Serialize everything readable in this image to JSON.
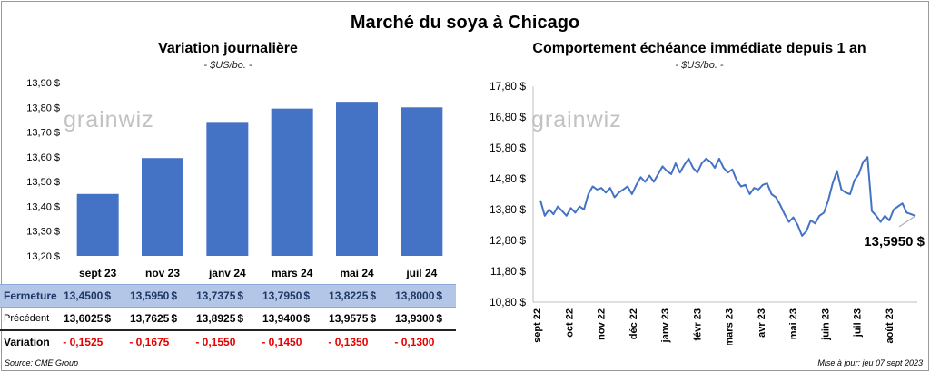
{
  "title": "Marché du soya à Chicago",
  "left_chart": {
    "title": "Variation journalière",
    "subtitle": "- $US/bo. -"
  },
  "right_chart": {
    "title": "Comportement  échéance immédiate depuis 1 an",
    "subtitle": "- $US/bo. -"
  },
  "watermark": "grainwiz",
  "chart_data": [
    {
      "type": "bar",
      "categories": [
        "sept 23",
        "nov 23",
        "janv 24",
        "mars 24",
        "mai 24",
        "juil 24"
      ],
      "values": [
        13.45,
        13.595,
        13.7375,
        13.795,
        13.8225,
        13.8
      ],
      "ylim": [
        13.2,
        13.9
      ],
      "yticks": [
        "13,20 $",
        "13,30 $",
        "13,40 $",
        "13,50 $",
        "13,60 $",
        "13,70 $",
        "13,80 $",
        "13,90 $"
      ],
      "bar_color": "#4472c4",
      "grid": false
    },
    {
      "type": "line",
      "x_labels": [
        "sept 22",
        "oct 22",
        "nov 22",
        "déc 22",
        "janv 23",
        "févr 23",
        "mars 23",
        "avr 23",
        "mai 23",
        "juin 23",
        "juil 23",
        "août 23"
      ],
      "ylim": [
        10.8,
        17.8
      ],
      "yticks": [
        "10,80 $",
        "11,80 $",
        "12,80 $",
        "13,80 $",
        "14,80 $",
        "15,80 $",
        "16,80 $",
        "17,80 $"
      ],
      "values": [
        14.1,
        13.6,
        13.8,
        13.65,
        13.9,
        13.75,
        13.6,
        13.85,
        13.7,
        13.9,
        13.8,
        14.3,
        14.55,
        14.45,
        14.5,
        14.35,
        14.5,
        14.2,
        14.35,
        14.45,
        14.55,
        14.3,
        14.6,
        14.85,
        14.7,
        14.9,
        14.7,
        14.95,
        15.2,
        15.05,
        14.95,
        15.3,
        15.0,
        15.25,
        15.45,
        15.15,
        15.0,
        15.3,
        15.45,
        15.35,
        15.15,
        15.45,
        15.15,
        15.0,
        15.1,
        14.75,
        14.55,
        14.6,
        14.3,
        14.5,
        14.45,
        14.6,
        14.65,
        14.3,
        14.2,
        13.95,
        13.65,
        13.4,
        13.55,
        13.3,
        12.95,
        13.1,
        13.45,
        13.35,
        13.6,
        13.7,
        14.1,
        14.65,
        15.05,
        14.45,
        14.35,
        14.3,
        14.75,
        14.95,
        15.35,
        15.5,
        13.75,
        13.6,
        13.4,
        13.6,
        13.45,
        13.8,
        13.9,
        14.0,
        13.7,
        13.65,
        13.595
      ],
      "last_label": "13,5950 $",
      "line_color": "#4472c4",
      "grid": false
    }
  ],
  "table": {
    "rows": [
      {
        "label": "Fermeture",
        "values": [
          "13,4500",
          "13,5950",
          "13,7375",
          "13,7950",
          "13,8225",
          "13,8000"
        ],
        "currency": "$"
      },
      {
        "label": "Précédent",
        "values": [
          "13,6025",
          "13,7625",
          "13,8925",
          "13,9400",
          "13,9575",
          "13,9300"
        ],
        "currency": "$"
      },
      {
        "label": "Variation",
        "values": [
          "- 0,1525",
          "- 0,1675",
          "- 0,1550",
          "- 0,1450",
          "- 0,1350",
          "- 0,1300"
        ],
        "currency": ""
      }
    ]
  },
  "footer": {
    "source": "Source: CME Group",
    "update": "Mise à jour: jeu 07 sept 2023"
  }
}
